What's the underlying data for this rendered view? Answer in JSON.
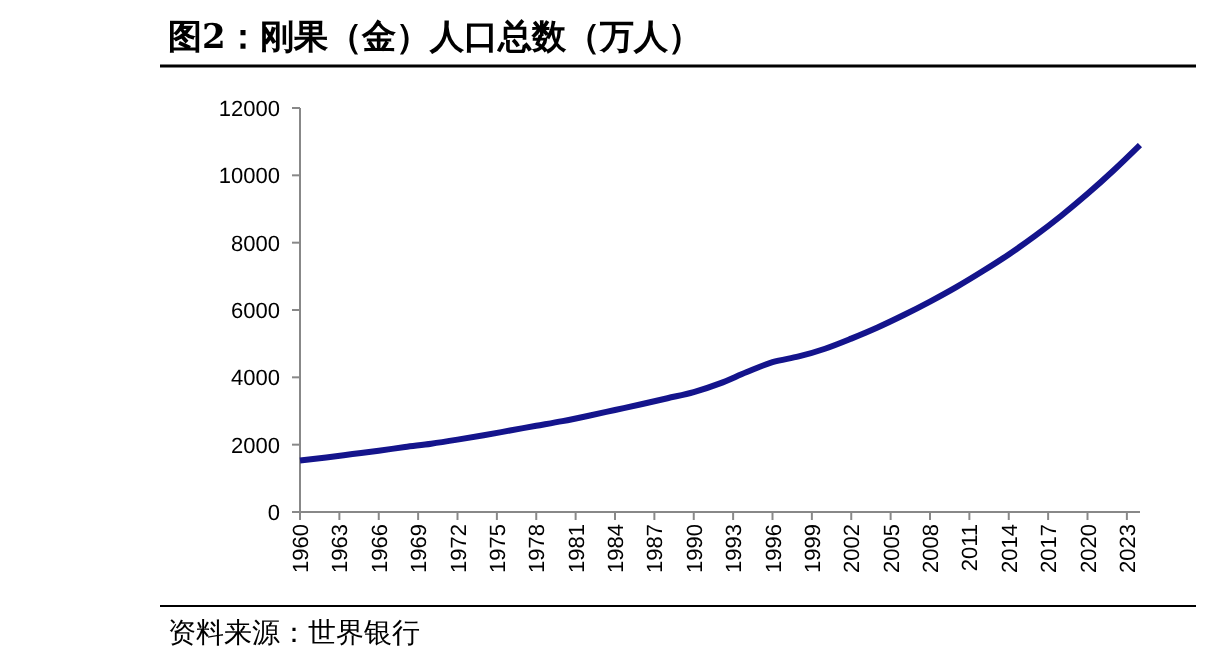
{
  "chart_data": {
    "type": "line",
    "title": "图2：刚果（金）人口总数（万人）",
    "annotations": [
      "资料来源：世界银行"
    ],
    "x": [
      1960,
      1962,
      1964,
      1966,
      1968,
      1970,
      1972,
      1974,
      1976,
      1978,
      1980,
      1982,
      1984,
      1986,
      1988,
      1990,
      1992,
      1994,
      1996,
      1998,
      2000,
      2002,
      2004,
      2006,
      2008,
      2010,
      2012,
      2014,
      2016,
      2018,
      2020,
      2022,
      2024
    ],
    "series": [
      {
        "color": "#14148c",
        "values": [
          1530,
          1620,
          1720,
          1820,
          1930,
          2030,
          2150,
          2280,
          2420,
          2560,
          2700,
          2860,
          3030,
          3200,
          3380,
          3560,
          3820,
          4150,
          4450,
          4620,
          4850,
          5150,
          5480,
          5850,
          6250,
          6680,
          7150,
          7650,
          8200,
          8800,
          9450,
          10150,
          10900
        ]
      }
    ],
    "xlim": [
      1960,
      2024
    ],
    "xticks": [
      1960,
      1963,
      1966,
      1969,
      1972,
      1975,
      1978,
      1981,
      1984,
      1987,
      1990,
      1993,
      1996,
      1999,
      2002,
      2005,
      2008,
      2011,
      2014,
      2017,
      2020,
      2023
    ],
    "ylim": [
      0,
      12000
    ],
    "yticks": [
      0,
      2000,
      4000,
      6000,
      8000,
      10000,
      12000
    ],
    "marker": "none",
    "line_style": "solid"
  }
}
